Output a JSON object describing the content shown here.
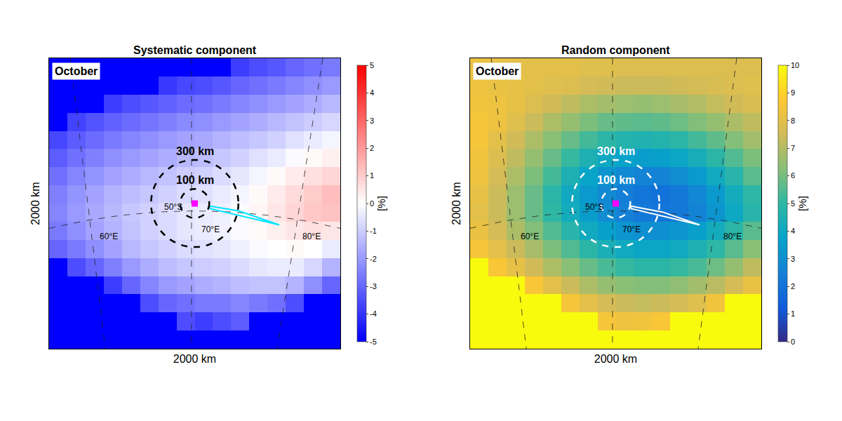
{
  "chart_data": [
    {
      "type": "heatmap",
      "title": "Systematic component",
      "label": "October",
      "xlabel": "2000 km",
      "ylabel": "2000 km",
      "xlim": [
        0,
        2000
      ],
      "ylim": [
        0,
        2000
      ],
      "tick_labels": false,
      "x": [
        62.5,
        187.5,
        312.5,
        437.5,
        562.5,
        687.5,
        812.5,
        937.5,
        1062.5,
        1187.5,
        1312.5,
        1437.5,
        1562.5,
        1687.5,
        1812.5,
        1937.5
      ],
      "y": [
        62.5,
        187.5,
        312.5,
        437.5,
        562.5,
        687.5,
        812.5,
        937.5,
        1062.5,
        1187.5,
        1312.5,
        1437.5,
        1562.5,
        1687.5,
        1812.5,
        1937.5
      ],
      "z": [
        [
          -5,
          -5,
          -5,
          -5,
          -5,
          -5,
          -5,
          -5,
          -5,
          -5,
          -5,
          -5,
          -5,
          -5,
          -5,
          -5
        ],
        [
          -5,
          -5,
          -5,
          -5,
          -5,
          -5,
          -5,
          -3.5,
          -3.8,
          -3.5,
          -3.2,
          -5,
          -5,
          -5,
          -5,
          -5
        ],
        [
          -5,
          -5,
          -5,
          -5,
          -5,
          -3.5,
          -3,
          -2.8,
          -2.6,
          -2.6,
          -2.4,
          -2.6,
          -2.8,
          -3.5,
          -5,
          -5
        ],
        [
          -5,
          -5,
          -5,
          -3.8,
          -3,
          -2.4,
          -2,
          -1.8,
          -1.6,
          -1.5,
          -1.3,
          -1.2,
          -1.2,
          -1.5,
          -2.2,
          -3
        ],
        [
          -5,
          -3.5,
          -3,
          -2.5,
          -2,
          -1.6,
          -1.3,
          -1.1,
          -1,
          -0.9,
          -0.7,
          -0.5,
          -0.4,
          -0.4,
          -0.8,
          -1.5
        ],
        [
          -3,
          -2.6,
          -2.2,
          -1.8,
          -1.4,
          -1.1,
          -0.9,
          -0.7,
          -0.6,
          -0.5,
          -0.3,
          -0.1,
          0,
          0.1,
          0,
          -0.4
        ],
        [
          -2.6,
          -2.2,
          -1.8,
          -1.5,
          -1.2,
          -0.9,
          -0.7,
          -0.5,
          -0.4,
          -0.3,
          -0.1,
          0.1,
          0.3,
          0.5,
          0.6,
          0.5
        ],
        [
          -2.4,
          -2,
          -1.7,
          -1.4,
          -1.1,
          -0.9,
          -0.7,
          -0.5,
          -0.4,
          -0.3,
          -0.1,
          0.2,
          0.5,
          0.8,
          1.1,
          1.2
        ],
        [
          -2.5,
          -2.1,
          -1.8,
          -1.5,
          -1.3,
          -1.1,
          -0.9,
          -0.7,
          -0.6,
          -0.4,
          -0.2,
          0.1,
          0.4,
          0.7,
          1,
          1.3
        ],
        [
          -2.8,
          -2.4,
          -2.1,
          -1.8,
          -1.6,
          -1.4,
          -1.2,
          -1,
          -0.9,
          -0.7,
          -0.5,
          -0.2,
          0.1,
          0.4,
          0.6,
          0.8
        ],
        [
          -3.2,
          -2.8,
          -2.5,
          -2.2,
          -2,
          -1.8,
          -1.6,
          -1.4,
          -1.3,
          -1.1,
          -0.9,
          -0.6,
          -0.4,
          -0.1,
          0.1,
          0.3
        ],
        [
          -3.6,
          -3.2,
          -2.9,
          -2.6,
          -2.4,
          -2.2,
          -2,
          -1.8,
          -1.7,
          -1.5,
          -1.3,
          -1.1,
          -0.9,
          -0.6,
          -0.4,
          -0.2
        ],
        [
          -5,
          -3.7,
          -3.4,
          -3.1,
          -2.9,
          -2.7,
          -2.5,
          -2.3,
          -2.2,
          -2,
          -1.8,
          -1.6,
          -1.4,
          -1.2,
          -1,
          -0.8
        ],
        [
          -5,
          -5,
          -5,
          -3.8,
          -3.5,
          -3.3,
          -3.1,
          -2.9,
          -2.8,
          -2.6,
          -2.4,
          -2.2,
          -2,
          -1.8,
          -1.6,
          -1.4
        ],
        [
          -5,
          -5,
          -5,
          -5,
          -5,
          -5,
          -3.9,
          -3.6,
          -3.5,
          -3.3,
          -3,
          -2.8,
          -2.6,
          -2.4,
          -2.2,
          -2
        ],
        [
          -5,
          -5,
          -5,
          -5,
          -5,
          -5,
          -5,
          -5,
          -5,
          -5,
          -3.8,
          -3.5,
          -3.3,
          -3,
          -2.8,
          -2.6
        ]
      ],
      "colorbar": {
        "range": [
          -5,
          5
        ],
        "ticks": [
          -5,
          -4,
          -3,
          -2,
          -1,
          0,
          1,
          2,
          3,
          4,
          5
        ],
        "title": "[%]"
      },
      "circles": [
        {
          "radius": 300,
          "label": "300 km"
        },
        {
          "radius": 100,
          "label": "100 km"
        }
      ],
      "site": {
        "x": 1000,
        "y": 1000,
        "color": "#ff00ff",
        "marker": "square"
      },
      "track": {
        "x": [
          1099,
          1301,
          1581,
          1108,
          1099
        ],
        "y": [
          983,
          949,
          853,
          964,
          983
        ],
        "color": "#00e5ff"
      },
      "graticule": [
        {
          "label": "60°E",
          "x": [
            145,
            386
          ],
          "y": [
            2000,
            0
          ],
          "label_xy": [
            410,
            771
          ]
        },
        {
          "label": "70°E",
          "x": [
            978,
            978
          ],
          "y": [
            2000,
            0
          ],
          "label_xy": [
            1108,
            819
          ]
        },
        {
          "label": "80°E",
          "x": [
            1880,
            1566
          ],
          "y": [
            2000,
            0
          ],
          "label_xy": [
            1802,
            771
          ]
        },
        {
          "label": "50°S",
          "x": [
            0,
            250,
            500,
            750,
            1000,
            1250,
            1500,
            1750,
            2000
          ],
          "y": [
            829,
            882,
            919,
            942,
            949,
            942,
            919,
            882,
            829
          ],
          "label_xy": [
            853,
            978
          ]
        }
      ]
    },
    {
      "type": "heatmap",
      "title": "Random component",
      "label": "October",
      "xlabel": "2000 km",
      "ylabel": "2000 km",
      "xlim": [
        0,
        2000
      ],
      "ylim": [
        0,
        2000
      ],
      "tick_labels": false,
      "x": [
        62.5,
        187.5,
        312.5,
        437.5,
        562.5,
        687.5,
        812.5,
        937.5,
        1062.5,
        1187.5,
        1312.5,
        1437.5,
        1562.5,
        1687.5,
        1812.5,
        1937.5
      ],
      "y": [
        62.5,
        187.5,
        312.5,
        437.5,
        562.5,
        687.5,
        812.5,
        937.5,
        1062.5,
        1187.5,
        1312.5,
        1437.5,
        1562.5,
        1687.5,
        1812.5,
        1937.5
      ],
      "z": [
        [
          10,
          10,
          10,
          10,
          10,
          10,
          10,
          10,
          10,
          10,
          10,
          10,
          10,
          10,
          10,
          10
        ],
        [
          10,
          10,
          10,
          10,
          10,
          10,
          10,
          8.5,
          8.3,
          8.4,
          8.6,
          10,
          10,
          10,
          10,
          10
        ],
        [
          10,
          10,
          10,
          10,
          10,
          8.5,
          8,
          7.6,
          7.4,
          7.3,
          7.4,
          7.6,
          7.9,
          8.4,
          10,
          10
        ],
        [
          10,
          10,
          10,
          8.6,
          8,
          7.4,
          6.9,
          6.5,
          6.3,
          6.2,
          6.2,
          6.4,
          6.7,
          7.1,
          7.6,
          8.2
        ],
        [
          10,
          8.6,
          8.1,
          7.5,
          6.9,
          6.3,
          5.8,
          5.4,
          5.1,
          4.9,
          4.9,
          5.1,
          5.4,
          5.9,
          6.5,
          7.2
        ],
        [
          8.5,
          8,
          7.4,
          6.8,
          6.1,
          5.5,
          4.9,
          4.4,
          4.1,
          3.9,
          3.9,
          4.1,
          4.5,
          5,
          5.6,
          6.3
        ],
        [
          8.2,
          7.6,
          6.9,
          6.2,
          5.5,
          4.8,
          4.1,
          3.6,
          3.2,
          3,
          3,
          3.2,
          3.6,
          4.2,
          4.9,
          5.6
        ],
        [
          8,
          7.4,
          6.6,
          5.8,
          5,
          4.2,
          3.5,
          2.9,
          2.5,
          2.2,
          2.1,
          2.2,
          2.6,
          3.2,
          4,
          4.8
        ],
        [
          8.1,
          7.4,
          6.6,
          5.8,
          4.9,
          4.1,
          3.4,
          2.8,
          2.4,
          2.1,
          2,
          2.2,
          2.7,
          3.4,
          4.2,
          5
        ],
        [
          8.3,
          7.6,
          6.9,
          6.1,
          5.3,
          4.5,
          3.8,
          3.2,
          2.8,
          2.6,
          2.6,
          2.9,
          3.4,
          4.1,
          4.8,
          5.6
        ],
        [
          8.4,
          7.8,
          7.2,
          6.5,
          5.8,
          5.1,
          4.5,
          4,
          3.7,
          3.5,
          3.6,
          3.9,
          4.3,
          4.9,
          5.5,
          6.1
        ],
        [
          8.5,
          8,
          7.5,
          6.9,
          6.3,
          5.8,
          5.3,
          4.9,
          4.7,
          4.6,
          4.7,
          4.9,
          5.3,
          5.7,
          6.2,
          6.7
        ],
        [
          8.5,
          8.3,
          7.9,
          7.4,
          6.9,
          6.5,
          6.1,
          5.8,
          5.7,
          5.6,
          5.7,
          5.9,
          6.2,
          6.5,
          6.9,
          7.2
        ],
        [
          8.4,
          8.3,
          8.1,
          7.8,
          7.5,
          7.2,
          6.9,
          6.7,
          6.6,
          6.5,
          6.6,
          6.8,
          7,
          7.3,
          7.5,
          7.7
        ],
        [
          8.3,
          8.2,
          8.1,
          8,
          7.9,
          7.8,
          7.6,
          7.5,
          7.4,
          7.4,
          7.4,
          7.5,
          7.6,
          7.7,
          7.8,
          7.9
        ],
        [
          8.2,
          8.1,
          8,
          8,
          8,
          8,
          7.9,
          7.9,
          7.8,
          7.8,
          7.8,
          7.8,
          7.8,
          7.8,
          7.8,
          7.8
        ]
      ],
      "colorbar": {
        "range": [
          0,
          10
        ],
        "ticks": [
          0,
          1,
          2,
          3,
          4,
          5,
          6,
          7,
          8,
          9,
          10
        ],
        "title": "[%]"
      },
      "circles": [
        {
          "radius": 300,
          "label": "300 km"
        },
        {
          "radius": 100,
          "label": "100 km"
        }
      ],
      "site": {
        "x": 1000,
        "y": 1000,
        "color": "#ff00ff",
        "marker": "square"
      },
      "track": {
        "x": [
          1099,
          1325,
          1576,
          1108,
          1099
        ],
        "y": [
          983,
          940,
          853,
          964,
          983
        ],
        "color": "#ffffff"
      },
      "graticule": [
        {
          "label": "60°E",
          "x": [
            145,
            386
          ],
          "y": [
            2000,
            0
          ],
          "label_xy": [
            410,
            771
          ]
        },
        {
          "label": "70°E",
          "x": [
            978,
            978
          ],
          "y": [
            2000,
            0
          ],
          "label_xy": [
            1108,
            819
          ]
        },
        {
          "label": "80°E",
          "x": [
            1831,
            1566
          ],
          "y": [
            2000,
            0
          ],
          "label_xy": [
            1802,
            771
          ]
        },
        {
          "label": "50°S",
          "x": [
            0,
            250,
            500,
            750,
            1000,
            1250,
            1500,
            1750,
            2000
          ],
          "y": [
            829,
            882,
            919,
            942,
            949,
            942,
            919,
            882,
            829
          ],
          "label_xy": [
            853,
            978
          ]
        }
      ]
    }
  ]
}
